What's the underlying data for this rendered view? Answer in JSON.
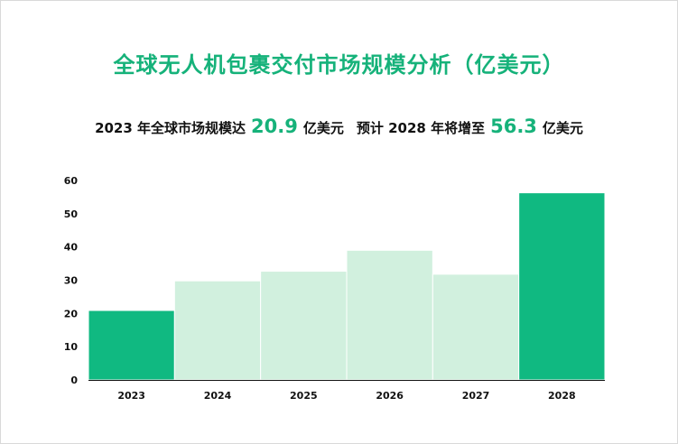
{
  "title": "全球无人机包裹交付市场规模分析（亿美元）",
  "subtitle": {
    "part1": "2023 年全球市场规模达",
    "value1": "20.9",
    "unit1": "亿美元",
    "part2": "预计 2028 年将增至",
    "value2": "56.3",
    "unit2": "亿美元"
  },
  "colors": {
    "title": "#16b27a",
    "highlight_bar": "#10b981",
    "normal_bar": "#d1f0de",
    "axis": "#111111"
  },
  "chart_data": {
    "type": "bar",
    "categories": [
      "2023",
      "2024",
      "2025",
      "2026",
      "2027",
      "2028"
    ],
    "values": [
      20.9,
      29.8,
      32.7,
      39.0,
      31.8,
      56.3
    ],
    "highlight": [
      true,
      false,
      false,
      false,
      false,
      true
    ],
    "ylim": [
      0,
      60
    ],
    "yticks": [
      0,
      10,
      20,
      30,
      40,
      50,
      60
    ],
    "xlabel": "",
    "ylabel": "",
    "grid": false
  }
}
